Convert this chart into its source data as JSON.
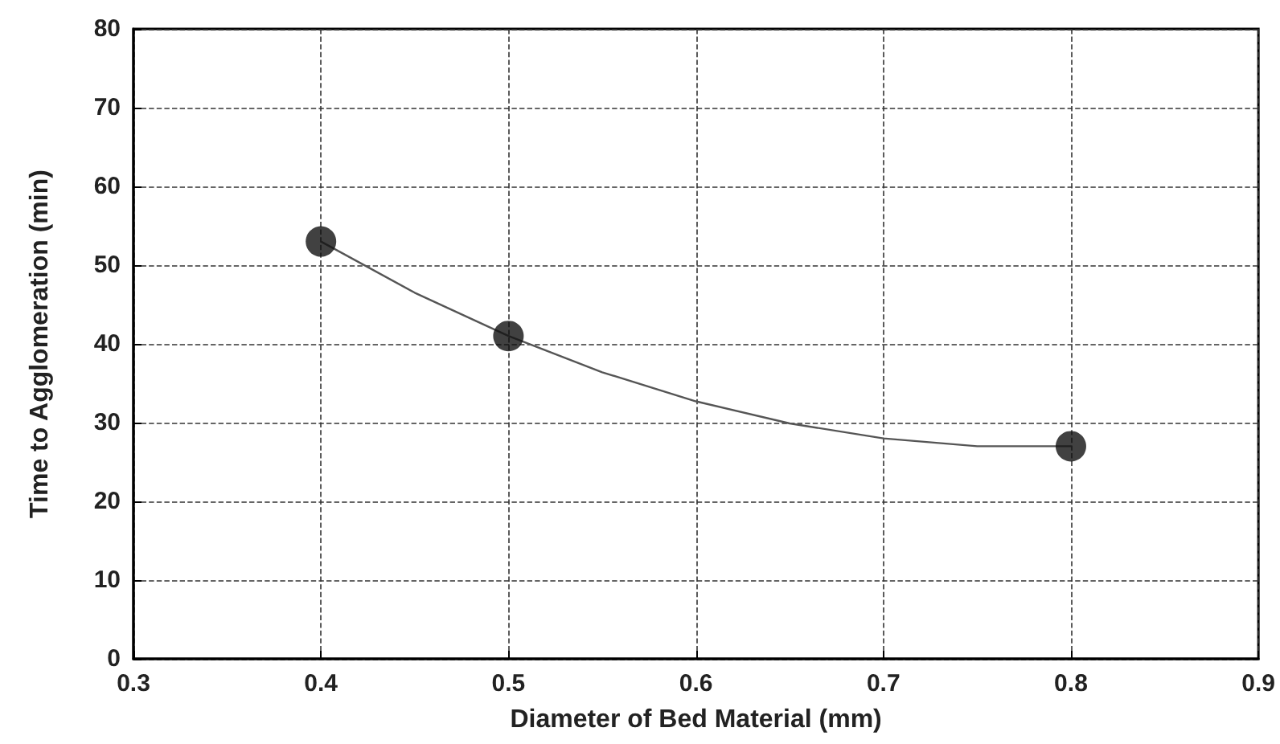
{
  "chart_data": {
    "type": "scatter",
    "xlabel": "Diameter of Bed Material (mm)",
    "ylabel": "Time to Agglomeration (min)",
    "xlim": [
      0.3,
      0.9
    ],
    "xticks": [
      0.3,
      0.4,
      0.5,
      0.6,
      0.7,
      0.8,
      0.9
    ],
    "ylim": [
      0,
      80
    ],
    "yticks": [
      0,
      10,
      20,
      30,
      40,
      50,
      60,
      70,
      80
    ],
    "grid": true,
    "series": [
      {
        "type": "line",
        "color": "#555555",
        "marker": "none",
        "line_style": "solid",
        "x": [
          0.4,
          0.45,
          0.5,
          0.55,
          0.6,
          0.65,
          0.7,
          0.75,
          0.8
        ],
        "values": [
          53,
          46.5,
          41,
          36.4,
          32.7,
          29.9,
          28,
          27,
          27
        ]
      },
      {
        "color": "#111111",
        "marker": "circle",
        "x": [
          0.4,
          0.5,
          0.8
        ],
        "values": [
          53,
          41,
          27
        ]
      }
    ]
  }
}
